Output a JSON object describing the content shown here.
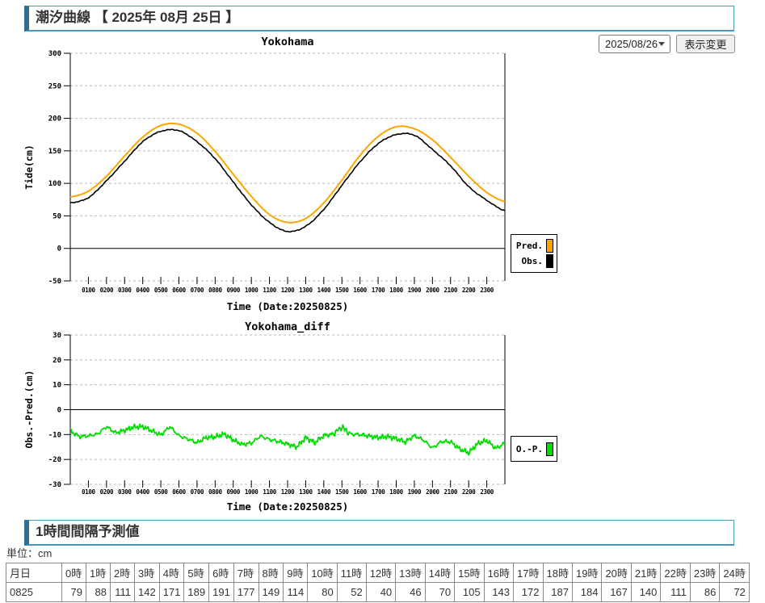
{
  "header": {
    "title": "潮汐曲線 【 2025年 08月 25日 】",
    "date_select_value": "2025/08/26",
    "change_button_label": "表示変更"
  },
  "section": {
    "title": "1時間間隔予測値",
    "unit_label": "単位：cm"
  },
  "chart_data": [
    {
      "type": "line",
      "title": "Yokohama",
      "xlabel": "Time (Date:20250825)",
      "ylabel": "Tide(cm)",
      "ylim": [
        -50,
        300
      ],
      "ytick_step": 50,
      "xlim": [
        0,
        24
      ],
      "x_step_hours": 1,
      "xtick_labels": [
        "0100",
        "0200",
        "0300",
        "0400",
        "0500",
        "0600",
        "0700",
        "0800",
        "0900",
        "1000",
        "1100",
        "1200",
        "1300",
        "1400",
        "1500",
        "1600",
        "1700",
        "1800",
        "1900",
        "2000",
        "2100",
        "2200",
        "2300"
      ],
      "grid": "horizontal-dashed",
      "legend_position": "outside-right",
      "series": [
        {
          "name": "Pred.",
          "color": "#FFA500",
          "values": [
            79,
            88,
            111,
            142,
            171,
            189,
            191,
            177,
            149,
            114,
            80,
            52,
            40,
            46,
            70,
            105,
            143,
            172,
            187,
            184,
            167,
            140,
            111,
            86,
            72
          ]
        },
        {
          "name": "Obs.",
          "color": "#000000",
          "values": [
            70,
            78,
            104,
            134,
            164,
            180,
            181,
            164,
            138,
            102,
            67,
            40,
            26,
            34,
            60,
            97,
            133,
            161,
            175,
            174,
            152,
            127,
            95,
            74,
            58
          ]
        }
      ]
    },
    {
      "type": "line",
      "title": "Yokohama_diff",
      "xlabel": "Time (Date:20250825)",
      "ylabel": "Obs.-Pred.(cm)",
      "ylim": [
        -30,
        30
      ],
      "ytick_step": 10,
      "xlim": [
        0,
        24
      ],
      "x_step_hours": 0.5,
      "xtick_labels": [
        "0100",
        "0200",
        "0300",
        "0400",
        "0500",
        "0600",
        "0700",
        "0800",
        "0900",
        "1000",
        "1100",
        "1200",
        "1300",
        "1400",
        "1500",
        "1600",
        "1700",
        "1800",
        "1900",
        "2000",
        "2100",
        "2200",
        "2300"
      ],
      "grid": "horizontal-dashed",
      "legend_position": "outside-right",
      "series": [
        {
          "name": "O.-P.",
          "color": "#00DE00",
          "values": [
            -8.5,
            -10.8,
            -10.5,
            -9.8,
            -6.8,
            -9.3,
            -8.3,
            -7.0,
            -6.8,
            -8.5,
            -10.2,
            -6.8,
            -10.5,
            -11.8,
            -13.3,
            -11.2,
            -11.0,
            -9.8,
            -12.2,
            -14.0,
            -13.4,
            -10.6,
            -12.0,
            -12.8,
            -13.8,
            -15.0,
            -11.2,
            -13.2,
            -10.4,
            -9.8,
            -7.0,
            -9.8,
            -10.0,
            -10.6,
            -11.2,
            -10.8,
            -11.6,
            -13.0,
            -10.4,
            -12.2,
            -15.4,
            -12.8,
            -12.9,
            -15.8,
            -17.4,
            -13.6,
            -12.4,
            -15.6,
            -13.5
          ]
        }
      ]
    }
  ],
  "table": {
    "headers": [
      "月日",
      "0時",
      "1時",
      "2時",
      "3時",
      "4時",
      "5時",
      "6時",
      "7時",
      "8時",
      "9時",
      "10時",
      "11時",
      "12時",
      "13時",
      "14時",
      "15時",
      "16時",
      "17時",
      "18時",
      "19時",
      "20時",
      "21時",
      "22時",
      "23時",
      "24時"
    ],
    "rows": [
      [
        "0825",
        "79",
        "88",
        "111",
        "142",
        "171",
        "189",
        "191",
        "177",
        "149",
        "114",
        "80",
        "52",
        "40",
        "46",
        "70",
        "105",
        "143",
        "172",
        "187",
        "184",
        "167",
        "140",
        "111",
        "86",
        "72"
      ]
    ]
  }
}
